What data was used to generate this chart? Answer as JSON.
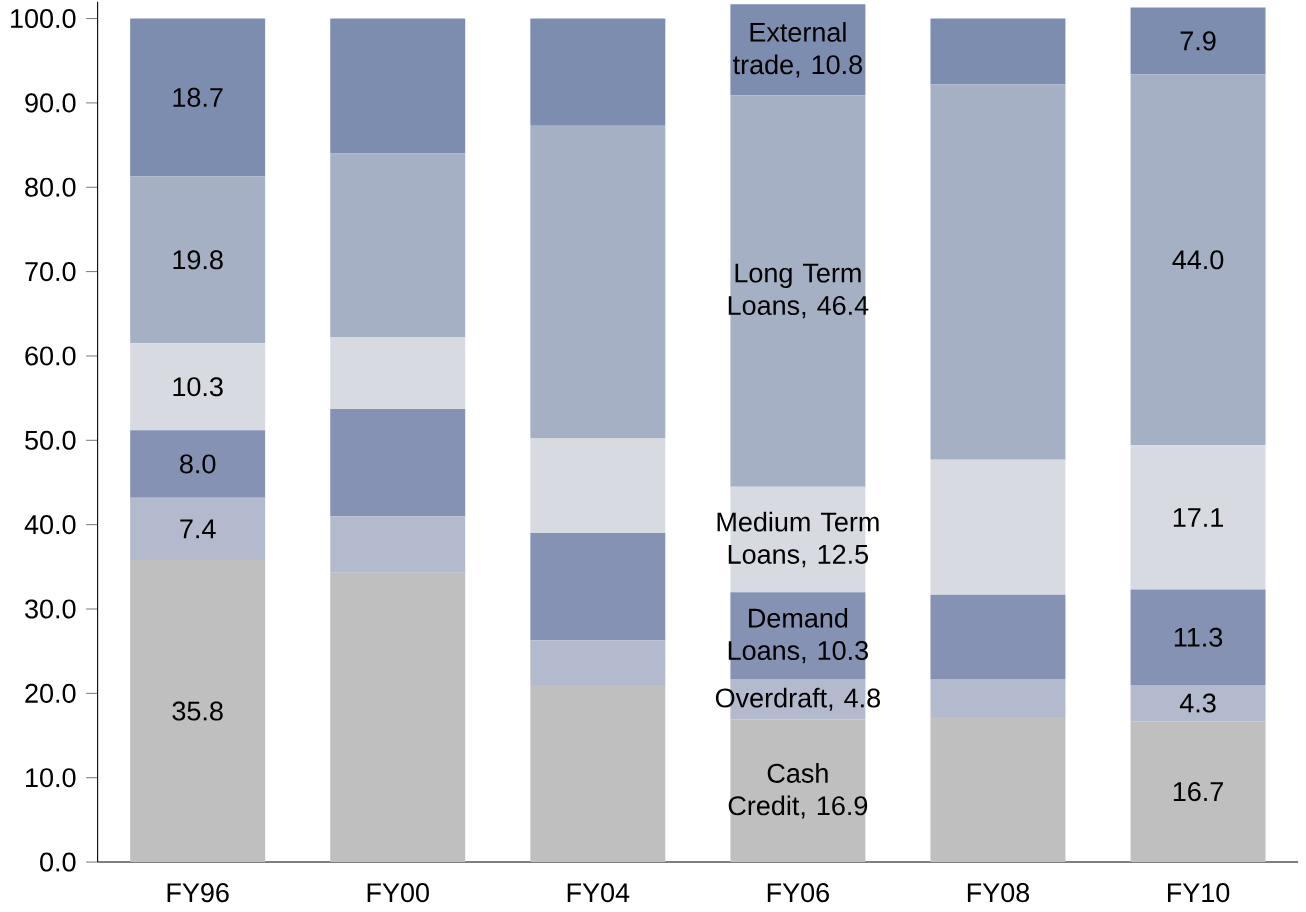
{
  "chart_data": {
    "type": "bar",
    "stacked": true,
    "categories": [
      "FY96",
      "FY00",
      "FY04",
      "FY06",
      "FY08",
      "FY10"
    ],
    "series": [
      {
        "color": "#bfbfbf",
        "values": [
          35.8,
          34.3,
          21.0,
          16.9,
          17.2,
          16.7
        ],
        "value_labels": [
          "35.8",
          null,
          null,
          "Cash Credit, 16.9",
          null,
          "16.7"
        ]
      },
      {
        "color": "#b3bace",
        "values": [
          7.4,
          6.7,
          5.3,
          4.8,
          4.5,
          4.3
        ],
        "value_labels": [
          "7.4",
          null,
          null,
          "Overdraft, 4.8",
          null,
          "4.3"
        ]
      },
      {
        "color": "#8592b4",
        "values": [
          8.0,
          12.7,
          12.7,
          10.3,
          10.0,
          11.3
        ],
        "value_labels": [
          "8.0",
          null,
          null,
          "Demand Loans, 10.3",
          null,
          "11.3"
        ]
      },
      {
        "color": "#d8dae1",
        "values": [
          10.3,
          8.5,
          11.2,
          12.5,
          16.0,
          17.1
        ],
        "value_labels": [
          "10.3",
          null,
          null,
          "Medium Term Loans, 12.5",
          null,
          "17.1"
        ]
      },
      {
        "color": "#a6b0c5",
        "values": [
          19.8,
          21.8,
          37.1,
          46.4,
          44.5,
          44.0
        ],
        "value_labels": [
          "19.8",
          null,
          null,
          "Long Term Loans, 46.4",
          null,
          "44.0"
        ]
      },
      {
        "color": "#7d8db0",
        "values": [
          18.7,
          16.0,
          12.7,
          10.8,
          7.8,
          7.9
        ],
        "value_labels": [
          "18.7",
          null,
          null,
          "External trade, 10.8",
          null,
          "7.9"
        ]
      }
    ],
    "ylim": [
      0,
      102
    ],
    "yticks": [
      {
        "value": 0,
        "label": "0.0"
      },
      {
        "value": 10,
        "label": "10.0"
      },
      {
        "value": 20,
        "label": "20.0"
      },
      {
        "value": 30,
        "label": "30.0"
      },
      {
        "value": 40,
        "label": "40.0"
      },
      {
        "value": 50,
        "label": "50.0"
      },
      {
        "value": 60,
        "label": "60.0"
      },
      {
        "value": 70,
        "label": "70.0"
      },
      {
        "value": 80,
        "label": "80.0"
      },
      {
        "value": 90,
        "label": "90.0"
      },
      {
        "value": 100,
        "label": "100.0"
      }
    ]
  }
}
